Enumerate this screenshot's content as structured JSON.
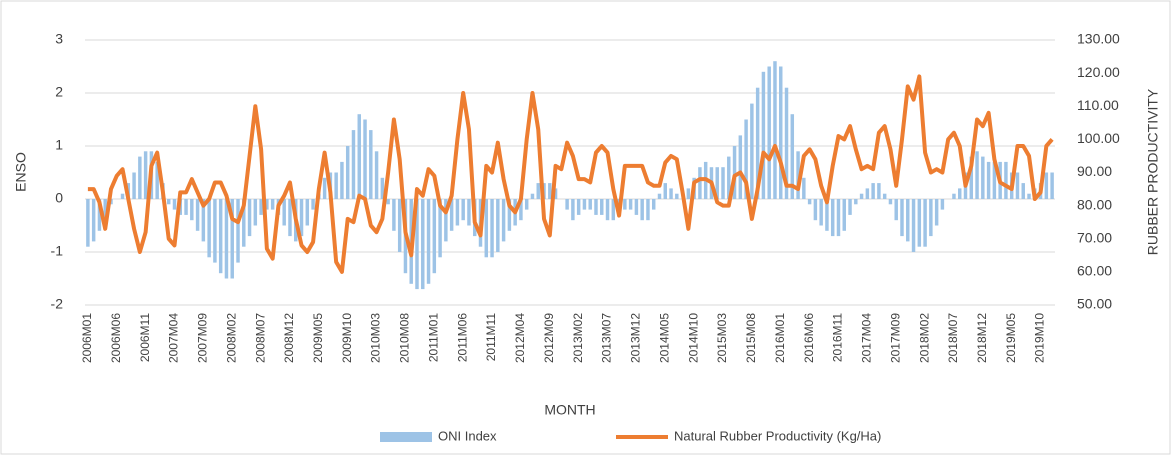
{
  "chart_data": {
    "type": "bar-line",
    "x_label": "MONTH",
    "y_label": "ENSO",
    "y2_label": "RUBBER PRODUCTIVITY",
    "categories": [
      "2006M01",
      null,
      null,
      null,
      null,
      "2006M06",
      null,
      null,
      null,
      null,
      "2006M11",
      null,
      null,
      null,
      null,
      "2007M04",
      null,
      null,
      null,
      null,
      "2007M09",
      null,
      null,
      null,
      null,
      "2008M02",
      null,
      null,
      null,
      null,
      "2008M07",
      null,
      null,
      null,
      null,
      "2008M12",
      null,
      null,
      null,
      null,
      "2009M05",
      null,
      null,
      null,
      null,
      "2009M10",
      null,
      null,
      null,
      null,
      "2010M03",
      null,
      null,
      null,
      null,
      "2010M08",
      null,
      null,
      null,
      null,
      "2011M01",
      null,
      null,
      null,
      null,
      "2011M06",
      null,
      null,
      null,
      null,
      "2011M11",
      null,
      null,
      null,
      null,
      "2012M04",
      null,
      null,
      null,
      null,
      "2012M09",
      null,
      null,
      null,
      null,
      "2013M02",
      null,
      null,
      null,
      null,
      "2013M07",
      null,
      null,
      null,
      null,
      "2013M12",
      null,
      null,
      null,
      null,
      "2014M05",
      null,
      null,
      null,
      null,
      "2014M10",
      null,
      null,
      null,
      null,
      "2015M03",
      null,
      null,
      null,
      null,
      "2015M08",
      null,
      null,
      null,
      null,
      "2016M01",
      null,
      null,
      null,
      null,
      "2016M06",
      null,
      null,
      null,
      null,
      "2016M11",
      null,
      null,
      null,
      null,
      "2017M04",
      null,
      null,
      null,
      null,
      "2017M09",
      null,
      null,
      null,
      null,
      "2018M02",
      null,
      null,
      null,
      null,
      "2018M07",
      null,
      null,
      null,
      null,
      "2018M12",
      null,
      null,
      null,
      null,
      "2019M05",
      null,
      null,
      null,
      null,
      "2019M10",
      null,
      null
    ],
    "series": [
      {
        "name": "ONI Index",
        "type": "bar",
        "color": "#9dc3e6",
        "values": [
          -0.9,
          -0.8,
          -0.6,
          -0.4,
          -0.1,
          0.0,
          0.1,
          0.3,
          0.5,
          0.8,
          0.9,
          0.9,
          0.7,
          0.3,
          -0.1,
          -0.2,
          -0.3,
          -0.3,
          -0.4,
          -0.6,
          -0.8,
          -1.1,
          -1.2,
          -1.4,
          -1.5,
          -1.5,
          -1.2,
          -0.9,
          -0.7,
          -0.5,
          -0.3,
          -0.2,
          -0.2,
          -0.3,
          -0.5,
          -0.7,
          -0.8,
          -0.7,
          -0.5,
          -0.2,
          0.1,
          0.4,
          0.5,
          0.5,
          0.7,
          1.0,
          1.3,
          1.6,
          1.5,
          1.3,
          0.9,
          0.4,
          -0.1,
          -0.6,
          -1.0,
          -1.4,
          -1.6,
          -1.7,
          -1.7,
          -1.6,
          -1.4,
          -1.1,
          -0.8,
          -0.6,
          -0.5,
          -0.4,
          -0.5,
          -0.7,
          -0.9,
          -1.1,
          -1.1,
          -1.0,
          -0.8,
          -0.6,
          -0.5,
          -0.4,
          -0.2,
          0.1,
          0.3,
          0.3,
          0.3,
          0.2,
          0.0,
          -0.2,
          -0.4,
          -0.3,
          -0.2,
          -0.2,
          -0.3,
          -0.3,
          -0.4,
          -0.4,
          -0.3,
          -0.2,
          -0.2,
          -0.3,
          -0.4,
          -0.4,
          -0.2,
          0.1,
          0.3,
          0.2,
          0.1,
          0.0,
          0.2,
          0.4,
          0.6,
          0.7,
          0.6,
          0.6,
          0.6,
          0.8,
          1.0,
          1.2,
          1.5,
          1.8,
          2.1,
          2.4,
          2.5,
          2.6,
          2.5,
          2.1,
          1.6,
          0.9,
          0.4,
          -0.1,
          -0.4,
          -0.5,
          -0.6,
          -0.7,
          -0.7,
          -0.6,
          -0.3,
          -0.1,
          0.1,
          0.2,
          0.3,
          0.3,
          0.1,
          -0.1,
          -0.4,
          -0.7,
          -0.8,
          -1.0,
          -0.9,
          -0.9,
          -0.7,
          -0.5,
          -0.2,
          0.0,
          0.1,
          0.2,
          0.5,
          0.8,
          0.9,
          0.8,
          0.7,
          0.7,
          0.7,
          0.7,
          0.5,
          0.5,
          0.3,
          0.1,
          0.2,
          0.3,
          0.5,
          0.5
        ]
      },
      {
        "name": "Natural Rubber Productivity (Kg/Ha)",
        "type": "line",
        "axis": "y2",
        "color": "#ed7d31",
        "values": [
          85,
          85,
          81,
          73,
          85,
          89,
          91,
          82,
          73,
          66,
          72,
          92,
          96,
          84,
          70,
          68,
          84,
          84,
          88,
          84,
          80,
          82,
          87,
          87,
          83,
          76,
          75,
          80,
          95,
          110,
          97,
          67,
          64,
          80,
          83,
          87,
          76,
          68,
          66,
          69,
          85,
          96,
          84,
          63,
          60,
          76,
          75,
          83,
          82,
          74,
          72,
          76,
          90,
          106,
          94,
          72,
          65,
          85,
          83,
          91,
          89,
          80,
          78,
          83,
          100,
          114,
          103,
          75,
          71,
          92,
          90,
          99,
          88,
          80,
          78,
          82,
          100,
          114,
          103,
          76,
          71,
          92,
          91,
          99,
          95,
          88,
          88,
          87,
          96,
          98,
          96,
          85,
          77,
          92,
          92,
          92,
          92,
          87,
          86,
          86,
          93,
          95,
          94,
          84,
          73,
          87,
          88,
          88,
          87,
          81,
          80,
          80,
          89,
          90,
          87,
          76,
          85,
          96,
          94,
          98,
          93,
          86,
          86,
          85,
          95,
          97,
          94,
          86,
          81,
          92,
          101,
          100,
          104,
          97,
          91,
          92,
          91,
          102,
          104,
          97,
          86,
          100,
          116,
          112,
          119,
          96,
          90,
          91,
          90,
          100,
          102,
          98,
          86,
          92,
          106,
          104,
          108,
          94,
          87,
          86,
          85,
          98,
          98,
          95,
          82,
          84,
          98,
          100
        ]
      }
    ],
    "ylim": [
      -2,
      3
    ],
    "yticks": [
      -2,
      -1,
      0,
      1,
      2,
      3
    ],
    "y2lim": [
      50,
      130
    ],
    "y2ticks": [
      {
        "value": 50,
        "label": "50.00"
      },
      {
        "value": 60,
        "label": "60.00"
      },
      {
        "value": 70,
        "label": "70.00"
      },
      {
        "value": 80,
        "label": "80.00"
      },
      {
        "value": 90,
        "label": "90.00"
      },
      {
        "value": 100,
        "label": "100.00"
      },
      {
        "value": 110,
        "label": "110.00"
      },
      {
        "value": 120,
        "label": "120.00"
      },
      {
        "value": 130,
        "label": "130.00"
      }
    ],
    "grid": true,
    "legend": "bottom"
  }
}
